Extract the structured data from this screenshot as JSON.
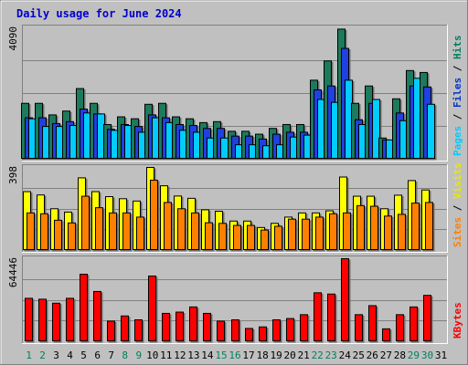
{
  "chart_data": {
    "title": "Daily usage for June 2024",
    "days": [
      "1",
      "2",
      "3",
      "4",
      "5",
      "6",
      "7",
      "8",
      "9",
      "10",
      "11",
      "12",
      "13",
      "14",
      "15",
      "16",
      "17",
      "18",
      "19",
      "20",
      "21",
      "22",
      "23",
      "24",
      "25",
      "26",
      "27",
      "28",
      "29",
      "30",
      "31"
    ],
    "weekend_days": [
      "1",
      "2",
      "8",
      "9",
      "15",
      "16",
      "22",
      "23",
      "29",
      "30"
    ],
    "day_colors": {
      "weekday": "#000000",
      "weekend": "#00805c"
    },
    "panels": [
      {
        "type": "bar",
        "max_label": "4090",
        "ymax": 4090,
        "side_labels": [
          {
            "text": "Pages",
            "color": "#00ccff"
          },
          {
            "text": " / ",
            "color": "#000000"
          },
          {
            "text": "Files",
            "color": "#0033cc"
          },
          {
            "text": " / ",
            "color": "#000000"
          },
          {
            "text": "Hits",
            "color": "#008060"
          }
        ],
        "series": [
          {
            "name": "Hits",
            "color": "#1d7a5c",
            "values": [
              1740,
              1740,
              1380,
              1500,
              2200,
              1740,
              1080,
              1320,
              1260,
              1710,
              1740,
              1320,
              1260,
              1140,
              1170,
              870,
              870,
              780,
              960,
              1080,
              1080,
              2460,
              3060,
              4050,
              1740,
              2280,
              660,
              1880,
              2760,
              2700,
              0
            ]
          },
          {
            "name": "Files",
            "color": "#2040e0",
            "values": [
              1290,
              1290,
              1110,
              1170,
              1560,
              1410,
              930,
              1080,
              1020,
              1380,
              1290,
              1080,
              1050,
              960,
              960,
              720,
              720,
              630,
              780,
              840,
              840,
              2160,
              2280,
              3450,
              1230,
              1740,
              600,
              1440,
              2280,
              2250,
              0
            ]
          },
          {
            "name": "Pages",
            "color": "#00ccff",
            "values": [
              1260,
              1020,
              1020,
              1050,
              1440,
              1410,
              900,
              1050,
              840,
              1290,
              1140,
              900,
              840,
              660,
              660,
              450,
              450,
              420,
              450,
              690,
              750,
              1860,
              1770,
              2460,
              1080,
              1860,
              600,
              1200,
              2520,
              1710,
              0
            ]
          }
        ]
      },
      {
        "type": "bar",
        "max_label": "398",
        "ymax": 398,
        "side_labels": [
          {
            "text": "Sites",
            "color": "#ff8000"
          },
          {
            "text": " / ",
            "color": "#000000"
          },
          {
            "text": "Visits",
            "color": "#e8e800"
          }
        ],
        "series": [
          {
            "name": "Visits",
            "color": "#ffff00",
            "values": [
              282,
              266,
              200,
              184,
              348,
              282,
              258,
              248,
              237,
              398,
              310,
              261,
              250,
              195,
              188,
              141,
              141,
              110,
              130,
              160,
              180,
              180,
              190,
              352,
              260,
              260,
              200,
              265,
              335,
              290,
              0
            ]
          },
          {
            "name": "Sites",
            "color": "#ff8000",
            "values": [
              180,
              176,
              145,
              132,
              260,
              205,
              180,
              180,
              160,
              337,
              230,
              200,
              180,
              133,
              130,
              120,
              120,
              98,
              116,
              150,
              150,
              160,
              176,
              180,
              215,
              212,
              165,
              173,
              227,
              230,
              0
            ]
          }
        ]
      },
      {
        "type": "bar",
        "max_label": "64446",
        "ymax": 64446,
        "side_labels": [
          {
            "text": "KBytes",
            "color": "#ff0000"
          }
        ],
        "series": [
          {
            "name": "KBytes",
            "color": "#ff0000",
            "values": [
              33700,
              33000,
              29900,
              33700,
              52400,
              39000,
              16000,
              20000,
              17000,
              51000,
              22000,
              23000,
              27000,
              22000,
              16000,
              17000,
              10300,
              11500,
              17000,
              18000,
              21000,
              38000,
              37000,
              64446,
              21000,
              28000,
              10000,
              21000,
              27000,
              36000,
              0
            ]
          }
        ]
      }
    ]
  }
}
